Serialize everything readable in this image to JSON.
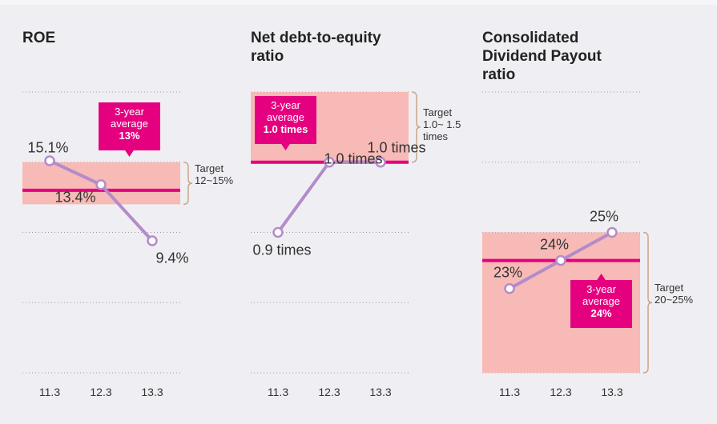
{
  "chart_data": [
    {
      "type": "line",
      "title": "ROE",
      "categories": [
        "11.3",
        "12.3",
        "13.3"
      ],
      "values": [
        15.1,
        13.4,
        9.4
      ],
      "value_labels": [
        "15.1%",
        "13.4%",
        "9.4%"
      ],
      "color": "#b48bca",
      "ylim": [
        0,
        20
      ],
      "yticks": [
        0,
        5,
        10,
        15,
        20
      ],
      "grid": true,
      "target": {
        "label": "Target",
        "range": [
          12,
          15
        ],
        "range_label": "12~15%"
      },
      "average": {
        "label": "3-year average",
        "value": 13,
        "value_label": "13%"
      }
    },
    {
      "type": "line",
      "title": "Net debt-to-equity ratio",
      "categories": [
        "11.3",
        "12.3",
        "13.3"
      ],
      "values": [
        0.9,
        1.0,
        1.0
      ],
      "value_labels": [
        "0.9 times",
        "1.0 times",
        "1.0 times"
      ],
      "color": "#b48bca",
      "ylim": [
        0.7,
        1.1
      ],
      "yticks": [
        0.7,
        0.8,
        0.9,
        1.0,
        1.1
      ],
      "grid": true,
      "target": {
        "label": "Target",
        "range": [
          1.0,
          1.5
        ],
        "range_label": "1.0~ 1.5 times"
      },
      "average": {
        "label": "3-year average",
        "value": 1.0,
        "value_label": "1.0 times"
      }
    },
    {
      "type": "line",
      "title": "Consolidated Dividend Payout ratio",
      "categories": [
        "11.3",
        "12.3",
        "13.3"
      ],
      "values": [
        23,
        24,
        25
      ],
      "value_labels": [
        "23%",
        "24%",
        "25%"
      ],
      "color": "#b48bca",
      "ylim": [
        20,
        30
      ],
      "yticks": [
        20,
        22.5,
        25,
        27.5,
        30
      ],
      "grid": true,
      "target": {
        "label": "Target",
        "range": [
          20,
          25
        ],
        "range_label": "20~25%"
      },
      "average": {
        "label": "3-year average",
        "value": 24,
        "value_label": "24%"
      }
    }
  ]
}
